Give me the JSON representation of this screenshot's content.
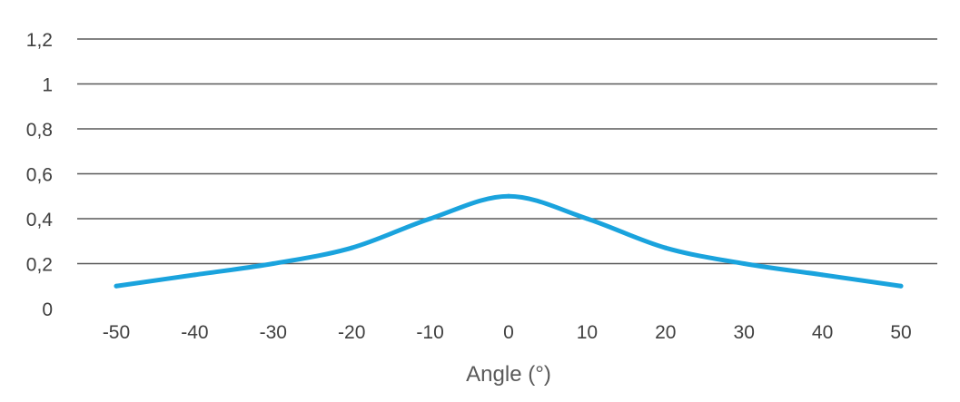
{
  "chart_data": {
    "type": "line",
    "x": [
      -50,
      -40,
      -30,
      -20,
      -10,
      0,
      10,
      20,
      30,
      40,
      50
    ],
    "series": [
      {
        "values": [
          0.1,
          0.15,
          0.2,
          0.27,
          0.4,
          0.5,
          0.4,
          0.27,
          0.2,
          0.15,
          0.1
        ]
      }
    ],
    "x_ticks": [
      "-50",
      "-40",
      "-30",
      "-20",
      "-10",
      "0",
      "10",
      "20",
      "30",
      "40",
      "50"
    ],
    "y_ticks": [
      "0",
      "0,2",
      "0,4",
      "0,6",
      "0,8",
      "1",
      "1,2"
    ],
    "y_tick_values": [
      0,
      0.2,
      0.4,
      0.6,
      0.8,
      1,
      1.2
    ],
    "xlabel": "Angle (°)",
    "ylabel": "",
    "title": "",
    "xlim": [
      -50,
      50
    ],
    "ylim": [
      0,
      1.2
    ],
    "grid": true,
    "line_color": "#1aa3dd",
    "grid_color": "#595959"
  }
}
